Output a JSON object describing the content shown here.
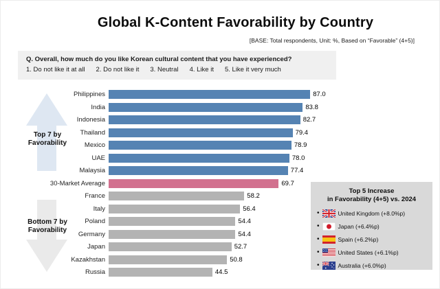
{
  "page": {
    "title": "Global K-Content Favorability by Country",
    "base_note": "[BASE: Total respondents, Unit: %, Based on “Favorable” (4+5)]"
  },
  "question_box": {
    "question": "Q. Overall, how much do you like Korean cultural content that you have experienced?",
    "scale_options": [
      "1. Do not like it at all",
      "2. Do not like it",
      "3. Neutral",
      "4. Like it",
      "5. Like it very much"
    ]
  },
  "group_labels": {
    "top": {
      "line1": "Top 7 by",
      "line2": "Favorability"
    },
    "bottom": {
      "line1": "Bottom 7 by",
      "line2": "Favorability"
    }
  },
  "chart_data": {
    "type": "bar",
    "orientation": "horizontal",
    "unit": "%",
    "xlim": [
      0,
      100
    ],
    "grid": false,
    "series": [
      {
        "name": "Top 7 by Favorability",
        "color": "#5583b3",
        "data": [
          {
            "label": "Philippines",
            "value": 87.0,
            "display": "87.0"
          },
          {
            "label": "India",
            "value": 83.8,
            "display": "83.8"
          },
          {
            "label": "Indonesia",
            "value": 82.7,
            "display": "82.7"
          },
          {
            "label": "Thailand",
            "value": 79.4,
            "display": "79.4"
          },
          {
            "label": "Mexico",
            "value": 78.9,
            "display": "78.9"
          },
          {
            "label": "UAE",
            "value": 78.0,
            "display": "78.0"
          },
          {
            "label": "Malaysia",
            "value": 77.4,
            "display": "77.4"
          }
        ]
      },
      {
        "name": "30-Market Average",
        "color": "#d2718f",
        "data": [
          {
            "label": "30-Market Average",
            "value": 69.7,
            "display": "69.7"
          }
        ]
      },
      {
        "name": "Bottom 7 by Favorability",
        "color": "#b3b3b3",
        "data": [
          {
            "label": "France",
            "value": 58.2,
            "display": "58.2"
          },
          {
            "label": "Italy",
            "value": 56.4,
            "display": "56.4"
          },
          {
            "label": "Poland",
            "value": 54.4,
            "display": "54.4"
          },
          {
            "label": "Germany",
            "value": 54.4,
            "display": "54.4"
          },
          {
            "label": "Japan",
            "value": 52.7,
            "display": "52.7"
          },
          {
            "label": "Kazakhstan",
            "value": 50.8,
            "display": "50.8"
          },
          {
            "label": "Russia",
            "value": 44.5,
            "display": "44.5"
          }
        ]
      }
    ]
  },
  "legend_box": {
    "title_line1": "Top 5 Increase",
    "title_line2": "in Favorability (4+5) vs. 2024",
    "items": [
      {
        "flag": "uk",
        "label": "United Kingdom (+8.0%p)"
      },
      {
        "flag": "japan",
        "label": "Japan (+6.4%p)"
      },
      {
        "flag": "spain",
        "label": "Spain (+6.2%p)"
      },
      {
        "flag": "us",
        "label": "United States (+6.1%p)"
      },
      {
        "flag": "australia",
        "label": "Australia (+6.0%p)"
      }
    ]
  },
  "colors": {
    "top_bar": "#5583b3",
    "average_bar": "#d2718f",
    "bottom_bar": "#b3b3b3",
    "top_arrow": "#dee7f2",
    "bottom_arrow": "#eaeaea",
    "question_box_bg": "#f0f0f0",
    "legend_box_bg": "#d9d9d9"
  }
}
